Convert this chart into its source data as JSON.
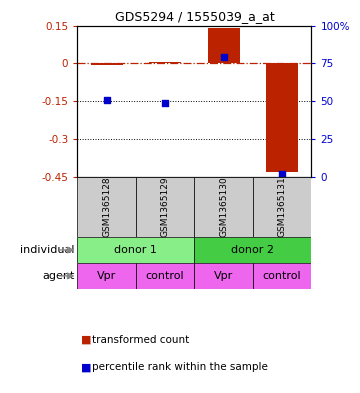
{
  "title": "GDS5294 / 1555039_a_at",
  "samples": [
    "GSM1365128",
    "GSM1365129",
    "GSM1365130",
    "GSM1365131"
  ],
  "red_values": [
    -0.005,
    0.005,
    0.14,
    -0.43
  ],
  "blue_values_pct": [
    51,
    49,
    79,
    2
  ],
  "ylim_left": [
    -0.45,
    0.15
  ],
  "ylim_right": [
    0,
    100
  ],
  "yticks_left": [
    0.15,
    0,
    -0.15,
    -0.3,
    -0.45
  ],
  "yticks_right": [
    100,
    75,
    50,
    25,
    0
  ],
  "red_color": "#bb2200",
  "blue_color": "#0000cc",
  "bar_width": 0.55,
  "individual_labels": [
    "donor 1",
    "donor 2"
  ],
  "agent_labels": [
    "Vpr",
    "control",
    "Vpr",
    "control"
  ],
  "donor1_color": "#88ee88",
  "donor2_color": "#44cc44",
  "agent_color": "#ee66ee",
  "sample_box_color": "#cccccc",
  "legend_red_label": "transformed count",
  "legend_blue_label": "percentile rank within the sample"
}
